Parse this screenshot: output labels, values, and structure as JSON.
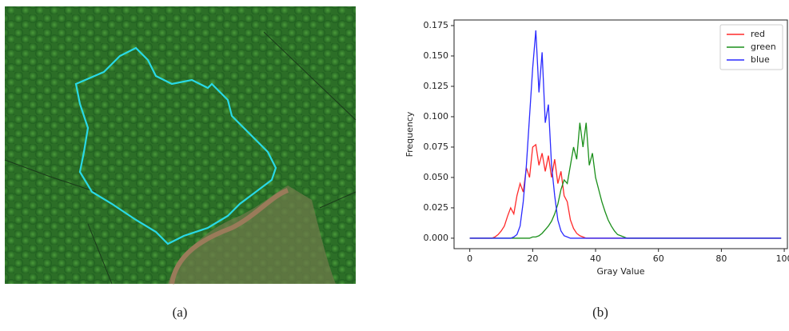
{
  "chart_data": {
    "type": "line",
    "xlabel": "Gray Value",
    "ylabel": "Frequency",
    "x": [
      0,
      1,
      2,
      3,
      4,
      5,
      6,
      7,
      8,
      9,
      10,
      11,
      12,
      13,
      14,
      15,
      16,
      17,
      18,
      19,
      20,
      21,
      22,
      23,
      24,
      25,
      26,
      27,
      28,
      29,
      30,
      31,
      32,
      33,
      34,
      35,
      36,
      37,
      38,
      39,
      40,
      41,
      42,
      43,
      44,
      45,
      46,
      47,
      48,
      49,
      50,
      51,
      52,
      53,
      54,
      55,
      56,
      57,
      58,
      59,
      60,
      61,
      62,
      63,
      64,
      65,
      66,
      67,
      68,
      69,
      70,
      71,
      72,
      73,
      74,
      75,
      76,
      77,
      78,
      79,
      80,
      81,
      82,
      83,
      84,
      85,
      86,
      87,
      88,
      89,
      90,
      91,
      92,
      93,
      94,
      95,
      96,
      97,
      98,
      99
    ],
    "series": [
      {
        "name": "red",
        "color": "#ff2a2a",
        "values": [
          0,
          0,
          0,
          0,
          0,
          0,
          0,
          0,
          0.001,
          0.003,
          0.006,
          0.01,
          0.018,
          0.025,
          0.02,
          0.035,
          0.045,
          0.038,
          0.058,
          0.05,
          0.075,
          0.077,
          0.06,
          0.07,
          0.055,
          0.068,
          0.05,
          0.065,
          0.045,
          0.055,
          0.035,
          0.03,
          0.015,
          0.008,
          0.004,
          0.002,
          0.001,
          0,
          0,
          0,
          0,
          0,
          0,
          0,
          0,
          0,
          0,
          0,
          0,
          0,
          0,
          0,
          0,
          0,
          0,
          0,
          0,
          0,
          0,
          0,
          0,
          0,
          0,
          0,
          0,
          0,
          0,
          0,
          0,
          0,
          0,
          0,
          0,
          0,
          0,
          0,
          0,
          0,
          0,
          0,
          0,
          0,
          0,
          0,
          0,
          0,
          0,
          0,
          0,
          0,
          0,
          0,
          0,
          0,
          0,
          0,
          0,
          0,
          0,
          0
        ]
      },
      {
        "name": "green",
        "color": "#1a8f1a",
        "values": [
          0,
          0,
          0,
          0,
          0,
          0,
          0,
          0,
          0,
          0,
          0,
          0,
          0,
          0,
          0,
          0,
          0,
          0,
          0,
          0,
          0.001,
          0.001,
          0.002,
          0.004,
          0.007,
          0.01,
          0.014,
          0.02,
          0.028,
          0.04,
          0.048,
          0.045,
          0.06,
          0.075,
          0.065,
          0.095,
          0.075,
          0.095,
          0.06,
          0.07,
          0.05,
          0.04,
          0.03,
          0.022,
          0.015,
          0.01,
          0.006,
          0.003,
          0.002,
          0.001,
          0,
          0,
          0,
          0,
          0,
          0,
          0,
          0,
          0,
          0,
          0,
          0,
          0,
          0,
          0,
          0,
          0,
          0,
          0,
          0,
          0,
          0,
          0,
          0,
          0,
          0,
          0,
          0,
          0,
          0,
          0,
          0,
          0,
          0,
          0,
          0,
          0,
          0,
          0,
          0,
          0,
          0,
          0,
          0,
          0,
          0,
          0,
          0,
          0,
          0
        ]
      },
      {
        "name": "blue",
        "color": "#2a2aff",
        "values": [
          0,
          0,
          0,
          0,
          0,
          0,
          0,
          0,
          0,
          0,
          0,
          0,
          0,
          0,
          0.001,
          0.003,
          0.01,
          0.03,
          0.06,
          0.1,
          0.14,
          0.171,
          0.12,
          0.153,
          0.095,
          0.11,
          0.06,
          0.035,
          0.015,
          0.006,
          0.002,
          0.001,
          0,
          0,
          0,
          0,
          0,
          0,
          0,
          0,
          0,
          0,
          0,
          0,
          0,
          0,
          0,
          0,
          0,
          0,
          0,
          0,
          0,
          0,
          0,
          0,
          0,
          0,
          0,
          0,
          0,
          0,
          0,
          0,
          0,
          0,
          0,
          0,
          0,
          0,
          0,
          0,
          0,
          0,
          0,
          0,
          0,
          0,
          0,
          0,
          0,
          0,
          0,
          0,
          0,
          0,
          0,
          0,
          0,
          0,
          0,
          0,
          0,
          0,
          0,
          0,
          0,
          0,
          0,
          0
        ]
      }
    ],
    "xlim": [
      -5,
      101
    ],
    "ylim": [
      -0.0086,
      0.1796
    ],
    "xticks": [
      0,
      20,
      40,
      60,
      80,
      100
    ],
    "yticks": [
      {
        "value": 0,
        "label": "0.000"
      },
      {
        "value": 0.025,
        "label": "0.025"
      },
      {
        "value": 0.05,
        "label": "0.050"
      },
      {
        "value": 0.075,
        "label": "0.075"
      },
      {
        "value": 0.1,
        "label": "0.100"
      },
      {
        "value": 0.125,
        "label": "0.125"
      },
      {
        "value": 0.15,
        "label": "0.150"
      },
      {
        "value": 0.175,
        "label": "0.175"
      }
    ],
    "legend": "upper right"
  },
  "captions": [
    "(a)",
    "(b)"
  ]
}
